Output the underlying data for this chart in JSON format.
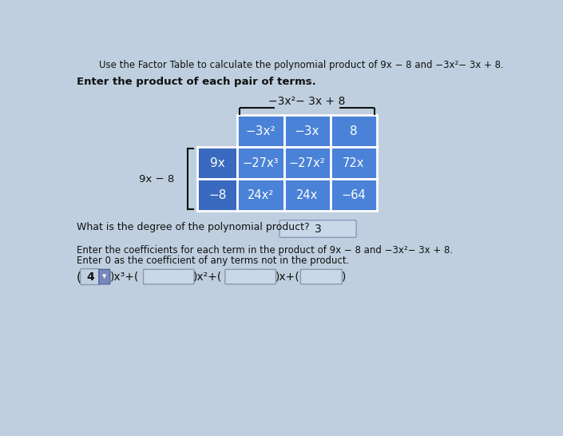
{
  "title_line1": "Use the Factor Table to calculate the polynomial product of 9x − 8 and −3x²− 3x + 8.",
  "bold_line": "Enter the product of each pair of terms.",
  "top_label": "−3x²− 3x + 8",
  "left_label": "9x − 8",
  "header_row": [
    "−3x²",
    "−3x",
    "8"
  ],
  "row1_label": "9x",
  "row2_label": "−8",
  "row1_cells": [
    "−27x³",
    "−27x²",
    "72x"
  ],
  "row2_cells": [
    "24x²",
    "24x",
    "−64"
  ],
  "degree_question": "What is the degree of the polynomial product?",
  "degree_answer": "3",
  "coeff_line1": "Enter the coefficients for each term in the product of 9x − 8 and −3x²− 3x + 8.",
  "coeff_line2": "Enter 0 as the coefficient of any terms not in the product.",
  "coeff_filled": "4",
  "bg_color": "#bfcfdf",
  "cell_color_dark": "#3a6abf",
  "cell_color_mid": "#4a82d8",
  "text_color_white": "#ffffff",
  "text_color_dark": "#111111",
  "degree_box_color": "#c8d8e8",
  "input_box_color": "#c8d8e8"
}
